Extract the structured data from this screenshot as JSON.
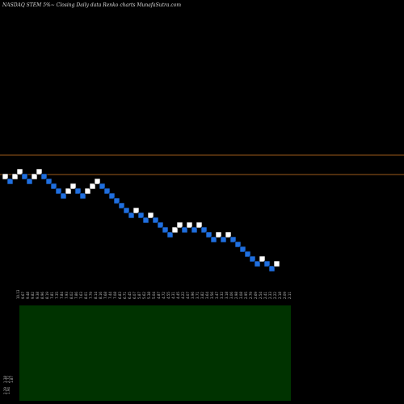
{
  "chart_data": {
    "type": "renko",
    "title": "NASDAQ STEM 5%~  Closing Daily data  Renko  charts MunafaSutra.com",
    "colors": {
      "background": "#000000",
      "up_brick": "#ffffff",
      "down_brick": "#1f6fe0",
      "brick_border": "#000000",
      "ref_line": "#9c5a1a",
      "volume_panel": "#003300"
    },
    "bricks": [
      {
        "dir": "up",
        "level": 9
      },
      {
        "dir": "down",
        "level": 8
      },
      {
        "dir": "up",
        "level": 9
      },
      {
        "dir": "up",
        "level": 10
      },
      {
        "dir": "down",
        "level": 9
      },
      {
        "dir": "down",
        "level": 8
      },
      {
        "dir": "up",
        "level": 9
      },
      {
        "dir": "up",
        "level": 10
      },
      {
        "dir": "down",
        "level": 9
      },
      {
        "dir": "down",
        "level": 8
      },
      {
        "dir": "down",
        "level": 7
      },
      {
        "dir": "down",
        "level": 6
      },
      {
        "dir": "down",
        "level": 5
      },
      {
        "dir": "up",
        "level": 6
      },
      {
        "dir": "up",
        "level": 7
      },
      {
        "dir": "down",
        "level": 6
      },
      {
        "dir": "down",
        "level": 5
      },
      {
        "dir": "up",
        "level": 6
      },
      {
        "dir": "up",
        "level": 7
      },
      {
        "dir": "up",
        "level": 8
      },
      {
        "dir": "down",
        "level": 7
      },
      {
        "dir": "down",
        "level": 6
      },
      {
        "dir": "down",
        "level": 5
      },
      {
        "dir": "down",
        "level": 4
      },
      {
        "dir": "down",
        "level": 3
      },
      {
        "dir": "down",
        "level": 2
      },
      {
        "dir": "down",
        "level": 1
      },
      {
        "dir": "up",
        "level": 2
      },
      {
        "dir": "down",
        "level": 1
      },
      {
        "dir": "down",
        "level": 0
      },
      {
        "dir": "up",
        "level": 1
      },
      {
        "dir": "down",
        "level": 0
      },
      {
        "dir": "down",
        "level": -1
      },
      {
        "dir": "down",
        "level": -2
      },
      {
        "dir": "down",
        "level": -3
      },
      {
        "dir": "up",
        "level": -2
      },
      {
        "dir": "up",
        "level": -1
      },
      {
        "dir": "down",
        "level": -2
      },
      {
        "dir": "up",
        "level": -1
      },
      {
        "dir": "down",
        "level": -2
      },
      {
        "dir": "up",
        "level": -1
      },
      {
        "dir": "down",
        "level": -2
      },
      {
        "dir": "down",
        "level": -3
      },
      {
        "dir": "down",
        "level": -4
      },
      {
        "dir": "up",
        "level": -3
      },
      {
        "dir": "down",
        "level": -4
      },
      {
        "dir": "up",
        "level": -3
      },
      {
        "dir": "down",
        "level": -4
      },
      {
        "dir": "down",
        "level": -5
      },
      {
        "dir": "down",
        "level": -6
      },
      {
        "dir": "down",
        "level": -7
      },
      {
        "dir": "down",
        "level": -8
      },
      {
        "dir": "down",
        "level": -9
      },
      {
        "dir": "up",
        "level": -8
      },
      {
        "dir": "down",
        "level": -9
      },
      {
        "dir": "down",
        "level": -10
      },
      {
        "dir": "up",
        "level": -9
      }
    ],
    "price_ticks": [
      "10.13",
      "9.67",
      "9.48",
      "9.82",
      "9.38",
      "8.96",
      "8.19",
      "7.81",
      "7.35",
      "7.84",
      "7.93",
      "8.02",
      "7.86",
      "7.63",
      "8.01",
      "7.79",
      "8.14",
      "8.16",
      "7.68",
      "7.44",
      "7.08",
      "6.83",
      "6.71",
      "6.45",
      "6.07",
      "5.87",
      "5.62",
      "5.38",
      "5.04",
      "4.87",
      "4.72",
      "4.55",
      "4.31",
      "4.45",
      "4.22",
      "4.07",
      "3.96",
      "3.71",
      "3.82",
      "3.64",
      "3.56",
      "3.47",
      "3.32",
      "3.18",
      "3.06",
      "2.98",
      "3.08",
      "2.95",
      "2.79",
      "2.69",
      "2.54",
      "2.41",
      "2.33",
      "2.22",
      "2.18",
      "2.09",
      "2.11"
    ],
    "volume_ticks": [
      "1.38",
      "2.72",
      "1.87",
      "2.29",
      "1.94"
    ]
  }
}
